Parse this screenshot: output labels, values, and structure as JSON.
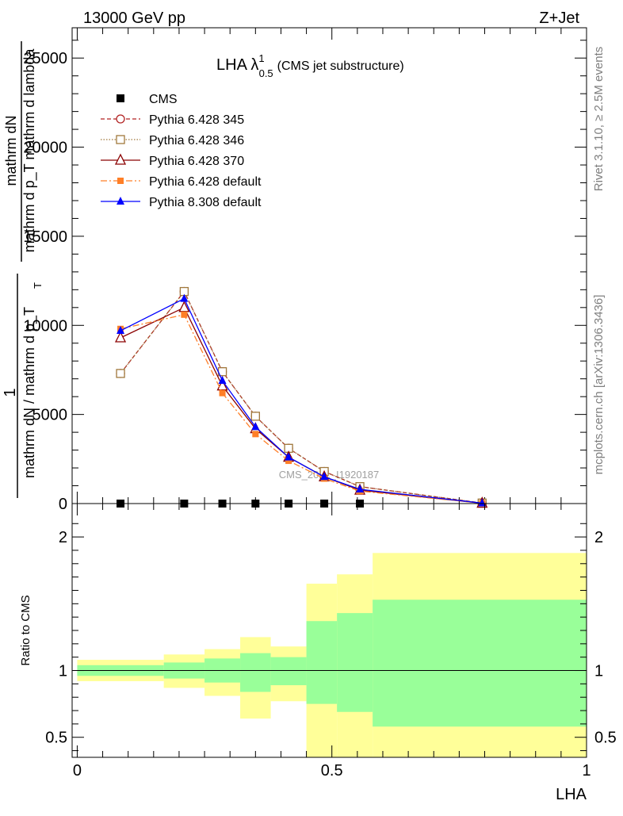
{
  "header": {
    "left": "13000 GeV pp",
    "right": "Z+Jet"
  },
  "side_labels": {
    "rivet": "Rivet 3.1.10, ≥ 2.5M events",
    "mcplots": "mcplots.cern.ch [arXiv:1306.3436]"
  },
  "watermark": "CMS_2021_I1920187",
  "colors": {
    "cms": "#000000",
    "p345": "#b22222",
    "p346": "#a0783c",
    "p370": "#8b0000",
    "p6def": "#ff7f27",
    "p8def": "#0000ff",
    "band_outer": "#ffff99",
    "band_inner": "#99ff99"
  },
  "chart_data": [
    {
      "type": "line",
      "title_main": "LHA λ",
      "title_sup": "1",
      "title_sub": "0.5",
      "title_note": "(CMS jet substructure)",
      "ylabel_top": "1",
      "ylabel_num": "mathrm dN",
      "ylabel_mid": "mathrm d p_T mathrm d lambda",
      "ylabel_den": "mathrm dN / mathrm d p_T",
      "ylabel_sub_a": "T",
      "ylim": [
        0,
        26700
      ],
      "xlim": [
        -0.01,
        1.0
      ],
      "y_ticks": [
        0,
        5000,
        10000,
        15000,
        20000,
        25000
      ],
      "y_tick_labels": [
        "0",
        "5000",
        "10000",
        "15000",
        "20000",
        "25000"
      ],
      "legend": {
        "position": "top-left",
        "entries": [
          "CMS",
          "Pythia 6.428 345",
          "Pythia 6.428 346",
          "Pythia 6.428 370",
          "Pythia 6.428 default",
          "Pythia 8.308 default"
        ]
      },
      "series": [
        {
          "name": "CMS",
          "marker": "square",
          "x": [
            0.085,
            0.21,
            0.285,
            0.35,
            0.415,
            0.485,
            0.555
          ],
          "y": [
            0,
            0,
            0,
            0,
            0,
            0,
            0
          ]
        },
        {
          "name": "Pythia 6.428 345",
          "marker": "circle-open",
          "dash": "5,3",
          "x": [
            0.085,
            0.21,
            0.285,
            0.35,
            0.415,
            0.485,
            0.555,
            0.795
          ],
          "y": [
            7300,
            11900,
            7400,
            4900,
            3100,
            1800,
            950,
            30
          ]
        },
        {
          "name": "Pythia 6.428 346",
          "marker": "square-open",
          "dash": "1.5,2",
          "x": [
            0.085,
            0.21,
            0.285,
            0.35,
            0.415,
            0.485,
            0.555,
            0.795
          ],
          "y": [
            7300,
            11900,
            7400,
            4900,
            3100,
            1800,
            950,
            30
          ]
        },
        {
          "name": "Pythia 6.428 370",
          "marker": "triangle-open",
          "dash": "",
          "x": [
            0.085,
            0.21,
            0.285,
            0.35,
            0.415,
            0.485,
            0.555,
            0.795
          ],
          "y": [
            9300,
            11000,
            6600,
            4200,
            2600,
            1500,
            750,
            20
          ]
        },
        {
          "name": "Pythia 6.428 default",
          "marker": "square-filled",
          "dash": "8,3,2,3",
          "x": [
            0.085,
            0.21,
            0.285,
            0.35,
            0.415,
            0.485,
            0.555,
            0.795
          ],
          "y": [
            9800,
            10600,
            6200,
            3900,
            2400,
            1400,
            700,
            20
          ]
        },
        {
          "name": "Pythia 8.308 default",
          "marker": "triangle-filled",
          "dash": "",
          "x": [
            0.085,
            0.21,
            0.285,
            0.35,
            0.415,
            0.485,
            0.555,
            0.795
          ],
          "y": [
            9700,
            11500,
            6900,
            4300,
            2600,
            1500,
            800,
            25
          ]
        }
      ]
    },
    {
      "type": "area",
      "xlabel": "LHA",
      "ylabel": "Ratio to CMS",
      "xlim": [
        -0.01,
        1.0
      ],
      "ylim": [
        0.35,
        2.25
      ],
      "x_ticks": [
        0,
        0.5,
        1
      ],
      "x_tick_labels": [
        "0",
        "0.5",
        "1"
      ],
      "y_ticks": [
        0.5,
        1,
        2
      ],
      "y_tick_labels": [
        "0.5",
        "1",
        "2"
      ],
      "reference": 1,
      "bins": [
        {
          "lo": 0.0,
          "hi": 0.17,
          "outer": [
            0.92,
            1.08
          ],
          "inner": [
            0.96,
            1.04
          ]
        },
        {
          "lo": 0.17,
          "hi": 0.25,
          "outer": [
            0.87,
            1.12
          ],
          "inner": [
            0.94,
            1.06
          ]
        },
        {
          "lo": 0.25,
          "hi": 0.32,
          "outer": [
            0.81,
            1.16
          ],
          "inner": [
            0.91,
            1.09
          ]
        },
        {
          "lo": 0.32,
          "hi": 0.38,
          "outer": [
            0.64,
            1.25
          ],
          "inner": [
            0.84,
            1.13
          ]
        },
        {
          "lo": 0.38,
          "hi": 0.45,
          "outer": [
            0.77,
            1.18
          ],
          "inner": [
            0.89,
            1.1
          ]
        },
        {
          "lo": 0.45,
          "hi": 0.51,
          "outer": [
            0.15,
            1.65
          ],
          "inner": [
            0.75,
            1.37
          ]
        },
        {
          "lo": 0.51,
          "hi": 0.58,
          "outer": [
            0.15,
            1.72
          ],
          "inner": [
            0.69,
            1.43
          ]
        },
        {
          "lo": 0.58,
          "hi": 1.0,
          "outer": [
            0.15,
            1.88
          ],
          "inner": [
            0.58,
            1.53
          ]
        }
      ]
    }
  ]
}
